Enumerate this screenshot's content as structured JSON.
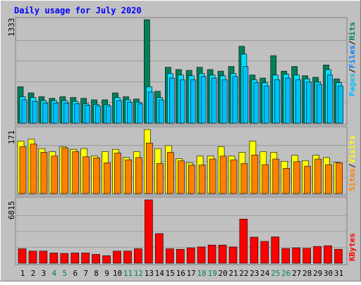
{
  "colors": {
    "background": "#C0C0C0",
    "hits": "#00805C",
    "files": "#00E0FF",
    "pages": "#00C0FF",
    "visits": "#FFFF00",
    "sites": "#FF8000",
    "kbytes": "#FF0000",
    "title": "#0000FF",
    "weekend_label": "#00805C"
  },
  "chart_data": [
    {
      "type": "bar",
      "title": "Daily usage for July 2020",
      "ymax_label": "1333",
      "ylim": [
        0,
        1333
      ],
      "legend": [
        "Pages",
        "Files",
        "Hits"
      ],
      "categories": [
        "1",
        "2",
        "3",
        "4",
        "5",
        "6",
        "7",
        "8",
        "9",
        "10",
        "11",
        "12",
        "13",
        "14",
        "15",
        "16",
        "17",
        "18",
        "19",
        "20",
        "21",
        "22",
        "23",
        "24",
        "25",
        "26",
        "27",
        "28",
        "29",
        "30",
        "31"
      ],
      "weekend_days": [
        4,
        5,
        11,
        12,
        18,
        19,
        25,
        26
      ],
      "series": [
        {
          "name": "Hits",
          "values": [
            470,
            390,
            340,
            320,
            340,
            330,
            320,
            300,
            300,
            390,
            340,
            310,
            1333,
            410,
            720,
            690,
            680,
            720,
            690,
            670,
            730,
            990,
            620,
            580,
            870,
            670,
            730,
            610,
            590,
            750,
            570
          ]
        },
        {
          "name": "Files",
          "values": [
            340,
            330,
            290,
            290,
            290,
            280,
            250,
            240,
            240,
            330,
            300,
            270,
            470,
            330,
            640,
            620,
            610,
            640,
            620,
            610,
            640,
            890,
            560,
            520,
            620,
            630,
            620,
            570,
            530,
            690,
            520
          ]
        },
        {
          "name": "Pages",
          "values": [
            300,
            280,
            260,
            260,
            260,
            250,
            230,
            220,
            220,
            290,
            270,
            250,
            400,
            300,
            580,
            560,
            560,
            600,
            580,
            560,
            600,
            730,
            520,
            480,
            560,
            580,
            560,
            530,
            500,
            620,
            480
          ]
        }
      ]
    },
    {
      "type": "bar",
      "ymax_label": "171",
      "ylim": [
        0,
        171
      ],
      "legend": [
        "Sites",
        "Visits"
      ],
      "categories": [
        "1",
        "2",
        "3",
        "4",
        "5",
        "6",
        "7",
        "8",
        "9",
        "10",
        "11",
        "12",
        "13",
        "14",
        "15",
        "16",
        "17",
        "18",
        "19",
        "20",
        "21",
        "22",
        "23",
        "24",
        "25",
        "26",
        "27",
        "28",
        "29",
        "30",
        "31"
      ],
      "series": [
        {
          "name": "Visits",
          "values": [
            140,
            145,
            120,
            112,
            125,
            118,
            120,
            100,
            112,
            118,
            96,
            112,
            171,
            120,
            128,
            93,
            82,
            100,
            100,
            125,
            100,
            110,
            140,
            112,
            110,
            86,
            102,
            88,
            102,
            96,
            83
          ]
        },
        {
          "name": "Sites",
          "values": [
            125,
            132,
            110,
            100,
            122,
            112,
            98,
            95,
            82,
            108,
            90,
            96,
            135,
            80,
            110,
            87,
            76,
            76,
            92,
            100,
            90,
            80,
            103,
            77,
            92,
            67,
            85,
            73,
            92,
            77,
            82
          ]
        }
      ]
    },
    {
      "type": "bar",
      "ymax_label": "6815",
      "ylim": [
        0,
        6815
      ],
      "legend": [
        "KBytes"
      ],
      "categories": [
        "1",
        "2",
        "3",
        "4",
        "5",
        "6",
        "7",
        "8",
        "9",
        "10",
        "11",
        "12",
        "13",
        "14",
        "15",
        "16",
        "17",
        "18",
        "19",
        "20",
        "21",
        "22",
        "23",
        "24",
        "25",
        "26",
        "27",
        "28",
        "29",
        "30",
        "31"
      ],
      "series": [
        {
          "name": "KBytes",
          "values": [
            1550,
            1300,
            1300,
            1100,
            1050,
            1100,
            1100,
            950,
            800,
            1300,
            1300,
            1550,
            6815,
            3180,
            1550,
            1500,
            1650,
            1750,
            1950,
            1950,
            1750,
            4750,
            2800,
            2350,
            2830,
            1580,
            1650,
            1600,
            1800,
            1880,
            1500
          ]
        }
      ]
    }
  ]
}
